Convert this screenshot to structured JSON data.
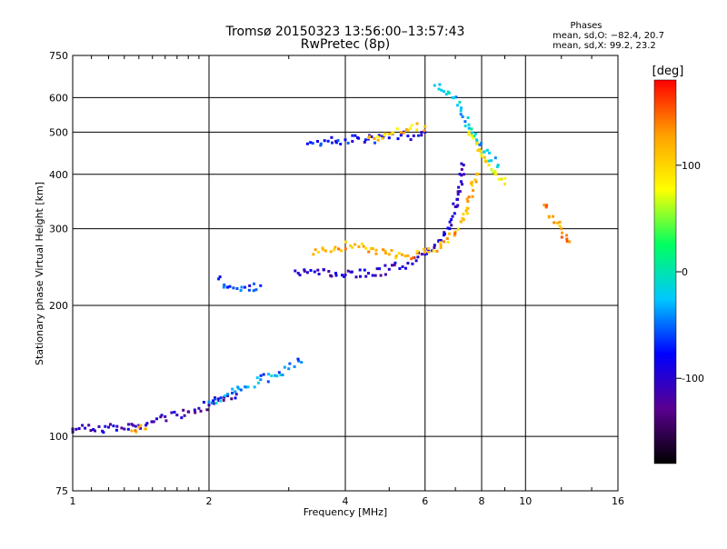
{
  "chart_data": {
    "type": "scatter",
    "title": "Tromsø 20150323 13:56:00–13:57:43",
    "subtitle": "RwPretec (8p)",
    "xlabel": "Frequency [MHz]",
    "ylabel": "Stationary phase Virtual Height [km]",
    "x_scale": "log",
    "y_scale": "log",
    "xlim": [
      1,
      16
    ],
    "ylim": [
      75,
      750
    ],
    "x_ticks": [
      1,
      2,
      4,
      6,
      8,
      10,
      16
    ],
    "y_ticks": [
      75,
      100,
      200,
      300,
      400,
      500,
      600,
      750
    ],
    "grid": true,
    "stats": {
      "heading": "Phases",
      "line_o": "mean, sd,O: −82.4, 20.7",
      "line_x": "mean, sd,X:  99.2, 23.2"
    },
    "colorbar": {
      "label": "[deg]",
      "range": [
        -180,
        180
      ],
      "ticks": [
        100,
        0,
        -100
      ],
      "colors": [
        "#000000",
        "#5a0090",
        "#0000ff",
        "#00c8ff",
        "#00ff60",
        "#ffff00",
        "#ffa000",
        "#ff0000"
      ]
    },
    "series": [
      {
        "freq": [
          1.0,
          1.05,
          1.12,
          1.2,
          1.3,
          1.4,
          1.5,
          1.6,
          1.7,
          1.8,
          1.9,
          2.0,
          2.1,
          2.2,
          2.3
        ],
        "height": [
          104,
          106,
          103,
          105,
          104,
          106,
          108,
          111,
          112,
          114,
          116,
          118,
          122,
          124,
          125
        ],
        "phase": -110
      },
      {
        "freq": [
          1.35,
          1.4,
          1.45
        ],
        "height": [
          103,
          105,
          104
        ],
        "phase": 120
      },
      {
        "freq": [
          2.0,
          2.2,
          2.4,
          2.6,
          2.8,
          3.0,
          3.2
        ],
        "height": [
          120,
          125,
          130,
          135,
          138,
          143,
          148
        ],
        "phase": -40
      },
      {
        "freq": [
          2.1,
          2.2,
          2.4,
          2.6
        ],
        "height": [
          230,
          220,
          220,
          222
        ],
        "phase": -70
      },
      {
        "freq": [
          3.1,
          3.3,
          3.5,
          4.0,
          4.5,
          5.0,
          5.5,
          6.0,
          6.3,
          6.6,
          6.9,
          7.1,
          7.3
        ],
        "height": [
          240,
          238,
          236,
          235,
          237,
          242,
          250,
          262,
          275,
          290,
          320,
          360,
          420
        ],
        "phase": -100
      },
      {
        "freq": [
          3.4,
          3.8,
          4.2,
          4.6,
          5.0,
          5.5,
          6.0,
          6.5,
          7.0,
          7.4,
          7.8
        ],
        "height": [
          262,
          272,
          276,
          270,
          262,
          260,
          265,
          275,
          295,
          330,
          400
        ],
        "phase": 120
      },
      {
        "freq": [
          3.3,
          3.6,
          4.0,
          4.5,
          5.0,
          5.5,
          6.0
        ],
        "height": [
          470,
          478,
          480,
          482,
          485,
          490,
          500
        ],
        "phase": -80
      },
      {
        "freq": [
          4.5,
          5.0,
          5.5,
          6.0
        ],
        "height": [
          485,
          495,
          505,
          515
        ],
        "phase": 110
      },
      {
        "freq": [
          6.3,
          6.6,
          6.9,
          7.2,
          7.5,
          7.8,
          8.1,
          8.4,
          8.7
        ],
        "height": [
          640,
          620,
          600,
          560,
          520,
          480,
          450,
          430,
          420
        ],
        "phase": -20
      },
      {
        "freq": [
          7.5,
          7.8,
          8.0,
          8.3,
          8.6,
          9.0
        ],
        "height": [
          500,
          470,
          440,
          420,
          400,
          380
        ],
        "phase": 90
      },
      {
        "freq": [
          11.0,
          11.5,
          12.0,
          12.5
        ],
        "height": [
          340,
          320,
          300,
          280
        ],
        "phase": 130
      }
    ]
  }
}
